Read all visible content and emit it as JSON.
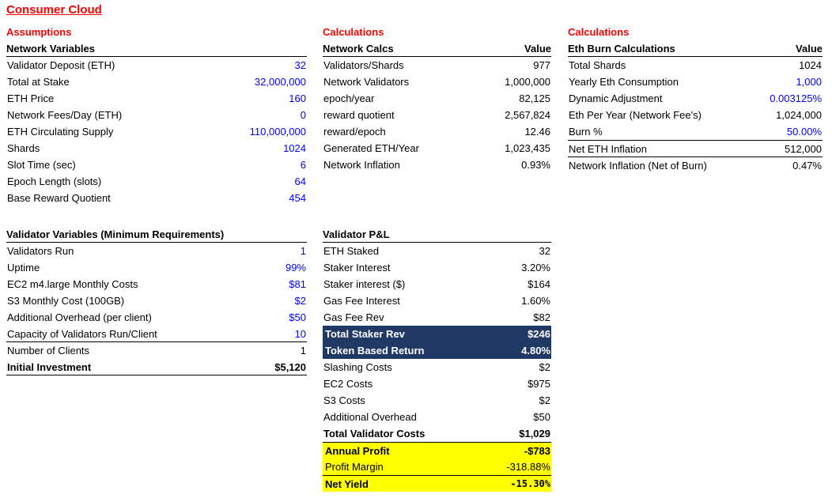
{
  "title": "Consumer Cloud",
  "colors": {
    "red": "#FF0000",
    "blue": "#0000FF",
    "navy": "#1F3864",
    "yellow": "#FFFF00",
    "text": "#000000",
    "background": "#FFFFFF"
  },
  "section_labels": {
    "assumptions": "Assumptions",
    "calculations_mid": "Calculations",
    "calculations_right": "Calculations"
  },
  "tables": [
    {
      "id": "network-variables",
      "header": {
        "label": "Network Variables",
        "value": ""
      },
      "rows": [
        {
          "label": "Validator Deposit (ETH)",
          "value": "32",
          "value_blue": true
        },
        {
          "label": "Total at Stake",
          "value": "32,000,000",
          "value_blue": true
        },
        {
          "label": "ETH Price",
          "value": "160",
          "value_blue": true
        },
        {
          "label": "Network Fees/Day (ETH)",
          "value": "0",
          "value_blue": true
        },
        {
          "label": "ETH Circulating Supply",
          "value": "110,000,000",
          "value_blue": true
        },
        {
          "label": "Shards",
          "value": "1024",
          "value_blue": true
        },
        {
          "label": "Slot Time (sec)",
          "value": "6",
          "value_blue": true
        },
        {
          "label": "Epoch Length (slots)",
          "value": "64",
          "value_blue": true
        },
        {
          "label": "Base Reward Quotient",
          "value": "454",
          "value_blue": true
        }
      ]
    },
    {
      "id": "network-calcs",
      "header": {
        "label": "Network Calcs",
        "value": "Value"
      },
      "rows": [
        {
          "label": "Validators/Shards",
          "value": "977"
        },
        {
          "label": "Network Validators",
          "value": "1,000,000"
        },
        {
          "label": "epoch/year",
          "value": "82,125"
        },
        {
          "label": "reward quotient",
          "value": "2,567,824"
        },
        {
          "label": "reward/epoch",
          "value": "12.46"
        },
        {
          "label": "Generated ETH/Year",
          "value": "1,023,435"
        },
        {
          "label": "Network Inflation",
          "value": "0.93%"
        }
      ]
    },
    {
      "id": "eth-burn",
      "header": {
        "label": "Eth Burn Calculations",
        "value": "Value"
      },
      "rows": [
        {
          "label": "Total Shards",
          "value": "1024"
        },
        {
          "label": "Yearly Eth Consumption",
          "value": "1,000",
          "value_blue": true
        },
        {
          "label": "Dynamic Adjustment",
          "value": "0.003125%",
          "value_blue": true
        },
        {
          "label": "Eth Per Year (Network Fee's)",
          "value": "1,024,000"
        },
        {
          "label": "Burn %",
          "value": "50.00%",
          "value_blue": true
        },
        {
          "label": "Net ETH Inflation",
          "value": "512,000",
          "border_top": true
        },
        {
          "label": "Network Inflation (Net of Burn)",
          "value": "0.47%",
          "border_top": true
        }
      ]
    },
    {
      "id": "validator-variables",
      "header": {
        "label": "Validator Variables (Minimum Requirements)",
        "value": ""
      },
      "rows": [
        {
          "label": "Validators Run",
          "value": "1",
          "value_blue": true
        },
        {
          "label": "Uptime",
          "value": "99%",
          "value_blue": true
        },
        {
          "label": "EC2 m4.large Monthly Costs",
          "value": "$81",
          "value_blue": true
        },
        {
          "label": "S3 Monthly Cost (100GB)",
          "value": "$2",
          "value_blue": true
        },
        {
          "label": "Additional Overhead (per client)",
          "value": "$50",
          "value_blue": true
        },
        {
          "label": "Capacity of Validators Run/Client",
          "value": "10",
          "value_blue": true,
          "border_bottom": true
        },
        {
          "label": "Number of Clients",
          "value": "1"
        },
        {
          "label": "Initial Investment",
          "value": "$5,120",
          "bold": true,
          "border_bottom": true
        }
      ]
    },
    {
      "id": "validator-pnl",
      "header": {
        "label": "Validator P&L",
        "value": ""
      },
      "rows": [
        {
          "label": "ETH Staked",
          "value": "32"
        },
        {
          "label": "Staker Interest",
          "value": "3.20%"
        },
        {
          "label": "Staker interest ($)",
          "value": "$164"
        },
        {
          "label": "Gas Fee Interest",
          "value": "1.60%"
        },
        {
          "label": "Gas Fee Rev",
          "value": "$82"
        },
        {
          "label": "Total Staker Rev",
          "value": "$246",
          "fill": "navy"
        },
        {
          "label": "Token Based Return",
          "value": "4.80%",
          "fill": "navy"
        },
        {
          "label": "Slashing Costs",
          "value": "$2"
        },
        {
          "label": "EC2 Costs",
          "value": "$975"
        },
        {
          "label": "S3 Costs",
          "value": "$2"
        },
        {
          "label": "Additional Overhead",
          "value": "$50"
        },
        {
          "label": "Total Validator Costs",
          "value": "$1,029",
          "bold": true
        },
        {
          "label": "Annual Profit",
          "value": "-$783",
          "fill": "yellow",
          "bold": true,
          "border_top": true
        },
        {
          "label": "Profit Margin",
          "value": "-318.88%",
          "fill": "yellow"
        },
        {
          "label": "Net Yield",
          "value": "-15.30%",
          "fill": "yellow",
          "bold": true,
          "border_top": true,
          "value_mono": true
        }
      ]
    }
  ]
}
